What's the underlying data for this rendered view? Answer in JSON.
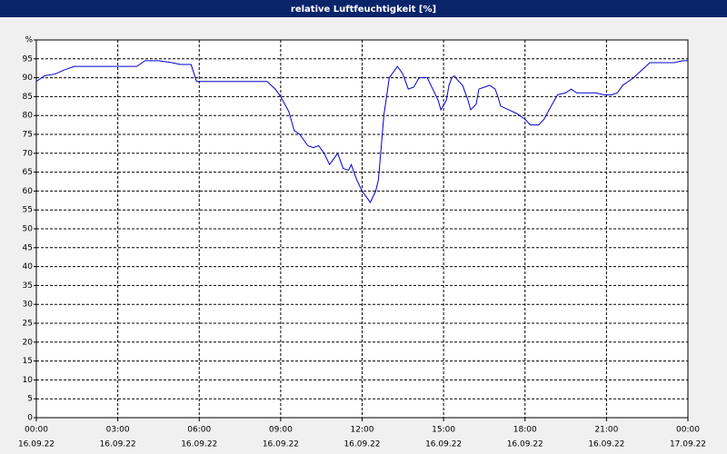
{
  "chart_data": {
    "type": "line",
    "title": "relative Luftfeuchtigkeit [%]",
    "x": [
      0,
      0.3,
      0.7,
      1.0,
      1.4,
      2,
      3,
      3.7,
      4.0,
      4.5,
      5.0,
      5.3,
      5.7,
      5.9,
      6.5,
      8,
      8.5,
      8.8,
      9.0,
      9.3,
      9.5,
      9.7,
      10.0,
      10.2,
      10.4,
      10.6,
      10.8,
      11.0,
      11.1,
      11.3,
      11.5,
      11.6,
      11.8,
      12.0,
      12.2,
      12.3,
      12.5,
      12.6,
      12.8,
      13.0,
      13.2,
      13.3,
      13.5,
      13.7,
      13.9,
      14.1,
      14.4,
      14.6,
      14.8,
      14.9,
      15.1,
      15.2,
      15.3,
      15.4,
      15.5,
      15.7,
      15.9,
      16.0,
      16.2,
      16.3,
      16.5,
      16.7,
      16.9,
      17.0,
      17.1,
      17.4,
      17.7,
      18.0,
      18.2,
      18.5,
      18.7,
      19.0,
      19.2,
      19.5,
      19.7,
      19.9,
      20.1,
      20.3,
      20.6,
      20.9,
      21.2,
      21.4,
      21.6,
      21.8,
      22.0,
      22.3,
      22.6,
      23.0,
      23.5,
      23.8,
      24.0
    ],
    "series": [
      {
        "color": "#0000cc",
        "values": [
          89,
          90.5,
          91,
          92,
          93,
          93,
          93,
          93,
          94.5,
          94.5,
          94,
          93.5,
          93.5,
          89,
          89,
          89,
          89,
          87,
          85,
          81,
          76,
          75,
          72,
          71.5,
          72,
          70,
          67,
          69,
          70,
          66,
          65.5,
          67,
          63,
          60,
          58,
          57,
          60,
          63,
          80,
          90,
          92,
          93,
          91,
          87,
          87.5,
          90,
          90,
          87,
          84,
          81.5,
          84,
          88,
          90,
          90.5,
          89.5,
          88,
          84,
          81.5,
          83,
          87,
          87.5,
          88,
          87,
          85,
          82.5,
          81.5,
          80.5,
          79,
          77.5,
          77.5,
          79,
          83,
          85.5,
          86,
          87,
          86,
          86,
          86,
          86,
          85.5,
          85.5,
          86,
          88,
          89,
          90,
          92,
          94,
          94,
          94,
          94.5,
          94.5
        ]
      }
    ],
    "xlim": [
      0,
      24
    ],
    "ylim": [
      0,
      100
    ],
    "xticks": [
      {
        "value": 0,
        "label": "00:00"
      },
      {
        "value": 3,
        "label": "03:00"
      },
      {
        "value": 6,
        "label": "06:00"
      },
      {
        "value": 9,
        "label": "09:00"
      },
      {
        "value": 12,
        "label": "12:00"
      },
      {
        "value": 15,
        "label": "15:00"
      },
      {
        "value": 18,
        "label": "18:00"
      },
      {
        "value": 21,
        "label": "21:00"
      },
      {
        "value": 24,
        "label": "00:00"
      }
    ],
    "xtick_dates": [
      "16.09.22",
      "16.09.22",
      "16.09.22",
      "16.09.22",
      "16.09.22",
      "16.09.22",
      "16.09.22",
      "16.09.22",
      "17.09.22"
    ],
    "yticks": [
      0,
      5,
      10,
      15,
      20,
      25,
      30,
      35,
      40,
      45,
      50,
      55,
      60,
      65,
      70,
      75,
      80,
      85,
      90,
      95,
      {
        "value": 100,
        "label": "%"
      }
    ],
    "grid": true
  }
}
